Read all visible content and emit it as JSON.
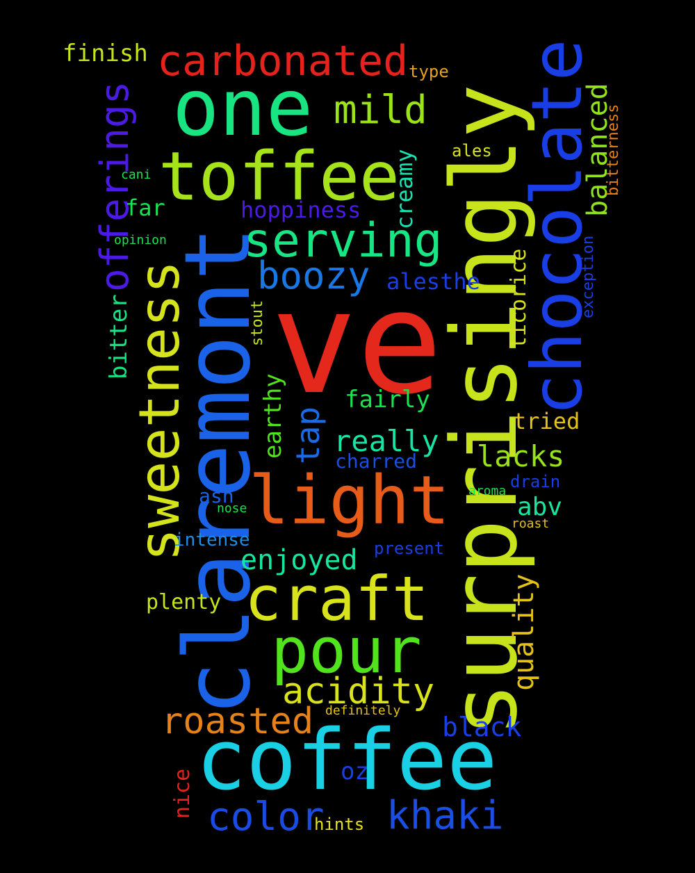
{
  "words": [
    {
      "text": "ve",
      "color": "#e5281c",
      "weight": 10
    },
    {
      "text": "surprisingly",
      "color": "#c6e31b",
      "weight": 10
    },
    {
      "text": "claremont",
      "color": "#1a63e8",
      "weight": 9
    },
    {
      "text": "coffee",
      "color": "#19d0e5",
      "weight": 8
    },
    {
      "text": "one",
      "color": "#18e582",
      "weight": 7
    },
    {
      "text": "chocolate",
      "color": "#1a3ee5",
      "weight": 7
    },
    {
      "text": "toffee",
      "color": "#a6e31b",
      "weight": 7
    },
    {
      "text": "light",
      "color": "#e85c1a",
      "weight": 7
    },
    {
      "text": "craft",
      "color": "#d8e31b",
      "weight": 6
    },
    {
      "text": "sweetness",
      "color": "#d4e31b",
      "weight": 6
    },
    {
      "text": "pour",
      "color": "#51e31b",
      "weight": 6
    },
    {
      "text": "serving",
      "color": "#18e583",
      "weight": 5
    },
    {
      "text": "carbonated",
      "color": "#e5221c",
      "weight": 4
    },
    {
      "text": "offerings",
      "color": "#4c1ae5",
      "weight": 4
    },
    {
      "text": "color",
      "color": "#1a4ce5",
      "weight": 4
    },
    {
      "text": "khaki",
      "color": "#1a4fe5",
      "weight": 4
    },
    {
      "text": "acidity",
      "color": "#d8e31b",
      "weight": 4
    },
    {
      "text": "roasted",
      "color": "#e5821a",
      "weight": 4
    },
    {
      "text": "mild",
      "color": "#9ae31b",
      "weight": 4
    },
    {
      "text": "boozy",
      "color": "#1a78e5",
      "weight": 4
    },
    {
      "text": "balanced",
      "color": "#91e31b",
      "weight": 3
    },
    {
      "text": "tap",
      "color": "#1a6be5",
      "weight": 3
    },
    {
      "text": "really",
      "color": "#18e5a5",
      "weight": 3
    },
    {
      "text": "quality",
      "color": "#e5c21a",
      "weight": 3
    },
    {
      "text": "enjoyed",
      "color": "#18e5a0",
      "weight": 3
    },
    {
      "text": "lacks",
      "color": "#9ae31b",
      "weight": 3
    },
    {
      "text": "creamy",
      "color": "#19e3b0",
      "weight": 2
    },
    {
      "text": "black",
      "color": "#1a3fe5",
      "weight": 2
    },
    {
      "text": "licorice",
      "color": "#d8e31b",
      "weight": 2
    },
    {
      "text": "earthy",
      "color": "#51e31b",
      "weight": 2
    },
    {
      "text": "hoppiness",
      "color": "#4c1ae5",
      "weight": 2
    },
    {
      "text": "alesthe",
      "color": "#1a3fe5",
      "weight": 2
    },
    {
      "text": "abv",
      "color": "#18e5a0",
      "weight": 2
    },
    {
      "text": "fairly",
      "color": "#19e34f",
      "weight": 2
    },
    {
      "text": "tried",
      "color": "#e5c21a",
      "weight": 2
    },
    {
      "text": "plenty",
      "color": "#c6e31b",
      "weight": 2
    },
    {
      "text": "far",
      "color": "#19e34f",
      "weight": 2
    },
    {
      "text": "finish",
      "color": "#c6e31b",
      "weight": 2
    },
    {
      "text": "bitter",
      "color": "#18e582",
      "weight": 2
    },
    {
      "text": "oz",
      "color": "#1a3fe5",
      "weight": 2
    },
    {
      "text": "charred",
      "color": "#1a4fe5",
      "weight": 2
    },
    {
      "text": "intense",
      "color": "#1a8ee5",
      "weight": 1
    },
    {
      "text": "present",
      "color": "#1a3ee5",
      "weight": 1
    },
    {
      "text": "ash",
      "color": "#1a63e8",
      "weight": 1
    },
    {
      "text": "exception",
      "color": "#1a3ee5",
      "weight": 1
    },
    {
      "text": "bitterness",
      "color": "#e5821a",
      "weight": 1
    },
    {
      "text": "stout",
      "color": "#c6e31b",
      "weight": 1
    },
    {
      "text": "drain",
      "color": "#1a3ee5",
      "weight": 1
    },
    {
      "text": "nice",
      "color": "#e5221c",
      "weight": 1
    },
    {
      "text": "hints",
      "color": "#e5e21a",
      "weight": 1
    },
    {
      "text": "type",
      "color": "#e5a21a",
      "weight": 1
    },
    {
      "text": "ales",
      "color": "#d8e31b",
      "weight": 1
    },
    {
      "text": "cani",
      "color": "#19e34f",
      "weight": 1
    },
    {
      "text": "opinion",
      "color": "#19e34f",
      "weight": 1
    },
    {
      "text": "aroma",
      "color": "#19e34f",
      "weight": 1
    },
    {
      "text": "nose",
      "color": "#19e34f",
      "weight": 1
    },
    {
      "text": "roast",
      "color": "#e5c21a",
      "weight": 1
    },
    {
      "text": "definitely",
      "color": "#e5c21a",
      "weight": 1
    }
  ]
}
